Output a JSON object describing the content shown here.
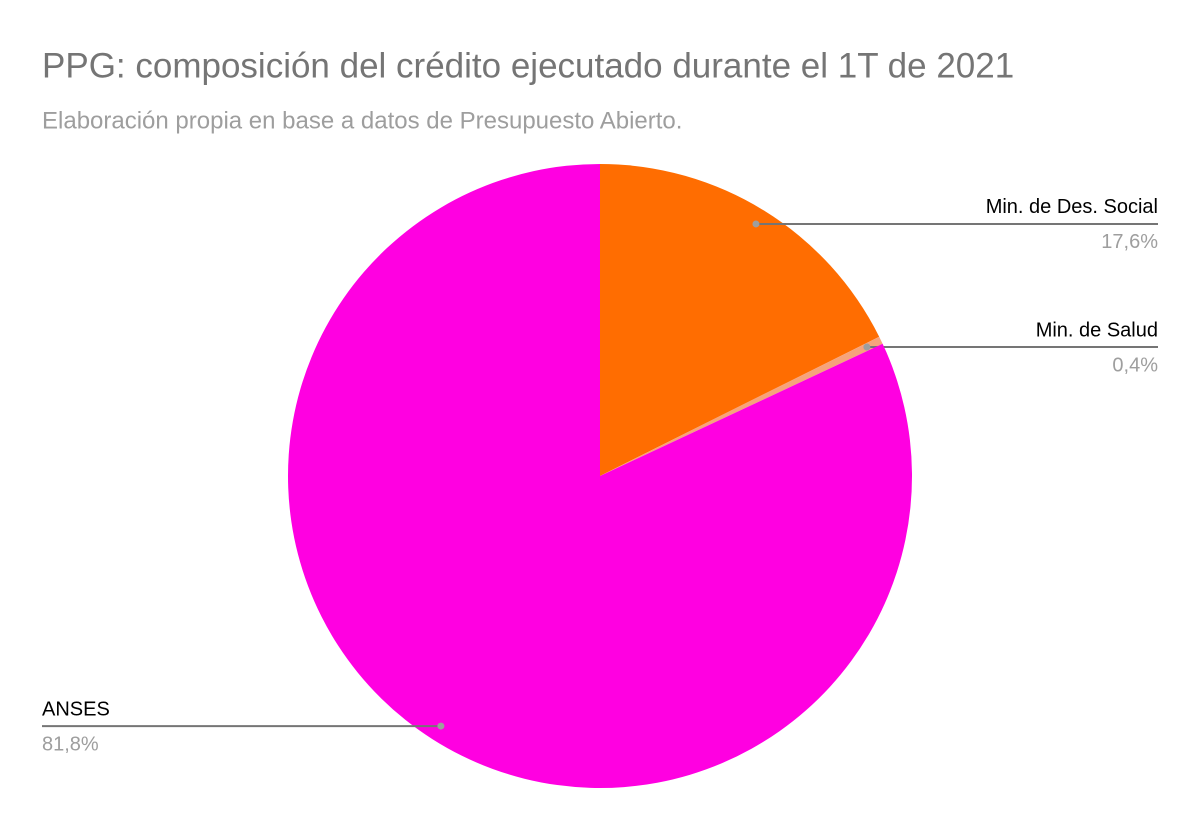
{
  "chart_data": {
    "type": "pie",
    "title": "PPG: composición del crédito ejecutado durante el 1T de 2021",
    "subtitle": "Elaboración propia en base a datos de Presupuesto Abierto.",
    "categories": [
      "Min. de Des. Social",
      "Min. de Salud",
      "ANSES"
    ],
    "values": [
      17.6,
      0.4,
      81.8
    ],
    "value_labels": [
      "17,6%",
      "0,4%",
      "81,8%"
    ],
    "colors": [
      "#ff6d01",
      "#f6a37b",
      "#ff00e1"
    ]
  }
}
